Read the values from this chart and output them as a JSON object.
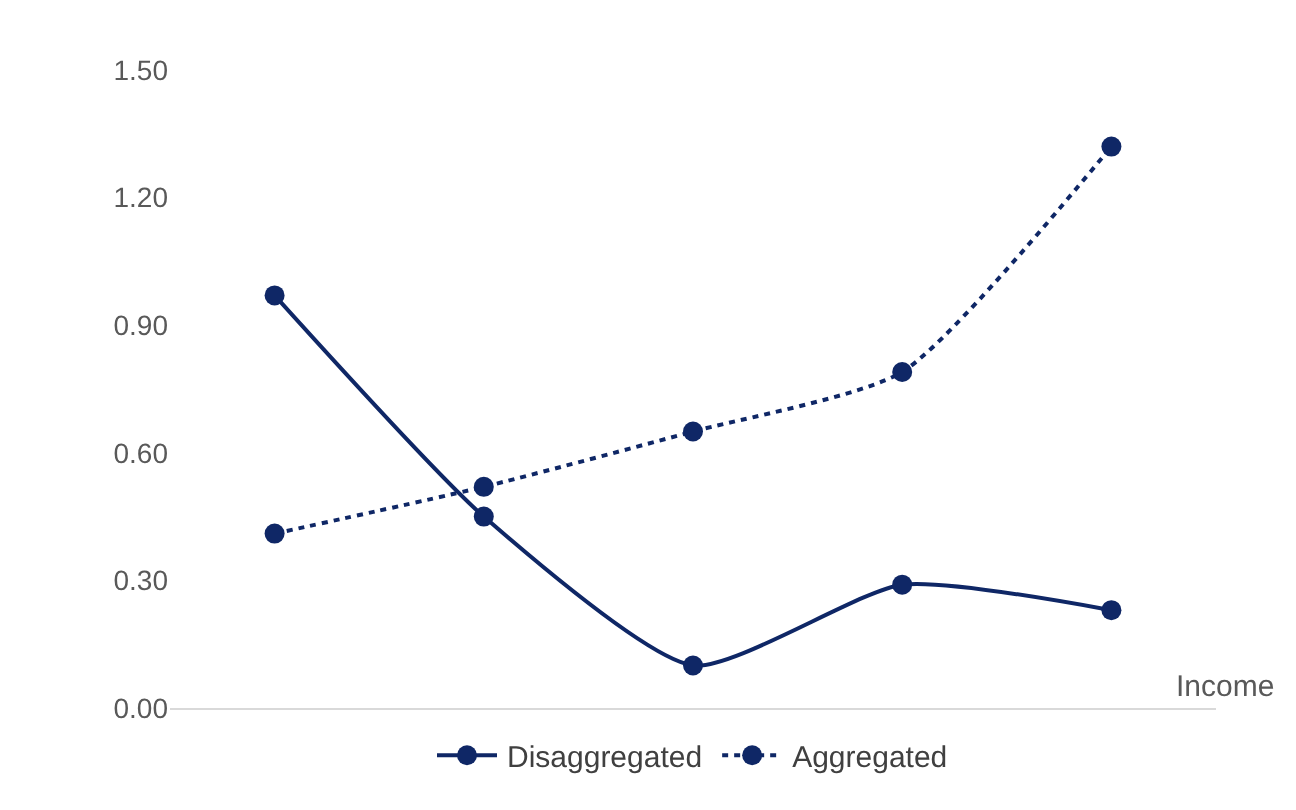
{
  "chart_data": {
    "type": "line",
    "xlabel": "Income",
    "categories": [
      null,
      null,
      null,
      null,
      null
    ],
    "series": [
      {
        "name": "Disaggregated",
        "color": "#0f2766",
        "values": [
          0.97,
          0.45,
          0.1,
          0.29,
          0.23
        ],
        "line_style": "solid"
      },
      {
        "name": "Aggregated",
        "color": "#0f2766",
        "values": [
          0.41,
          0.52,
          0.65,
          0.79,
          1.32
        ],
        "line_style": "dotted"
      }
    ],
    "ylim": [
      0,
      1.5
    ],
    "yticks": [
      {
        "value": 0,
        "label": "0.00"
      },
      {
        "value": 0.3,
        "label": "0.30"
      },
      {
        "value": 0.6,
        "label": "0.60"
      },
      {
        "value": 0.9,
        "label": "0.90"
      },
      {
        "value": 1.2,
        "label": "1.20"
      },
      {
        "value": 1.5,
        "label": "1.50"
      }
    ],
    "grid": false,
    "legend": "bottom",
    "marker": "circle"
  }
}
